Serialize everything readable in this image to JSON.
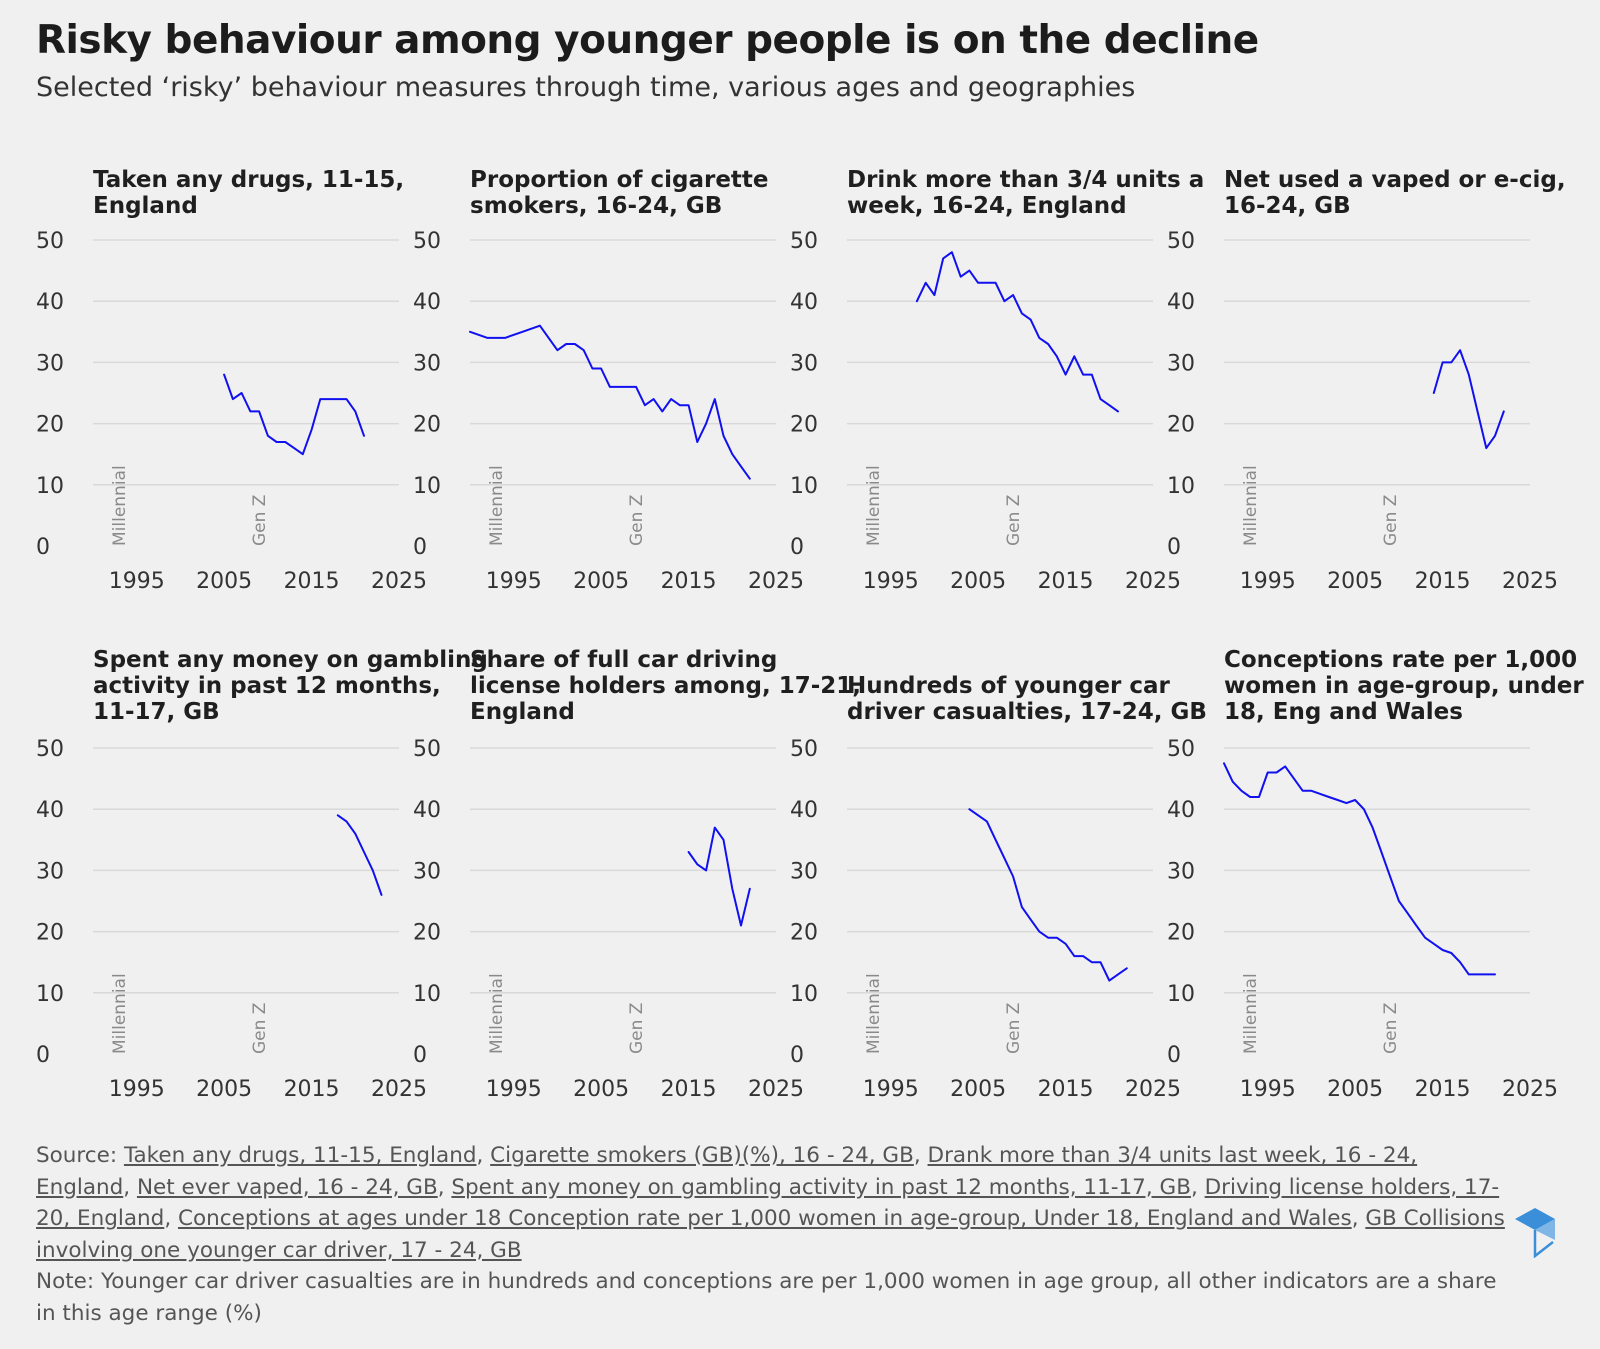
{
  "title": "Risky behaviour among younger people is on the decline",
  "subtitle": "Selected ‘risky’ behaviour measures through time, various ages and geographies",
  "chart_data": [
    {
      "type": "line",
      "title_lines": [
        "Taken any drugs, 11-15,",
        "England"
      ],
      "xlim": [
        1990,
        2025
      ],
      "ylim": [
        0,
        50
      ],
      "x_ticks": [
        "1995",
        "2005",
        "2015",
        "2025"
      ],
      "y_ticks": [
        "0",
        "10",
        "20",
        "30",
        "40",
        "50"
      ],
      "generation_labels": [
        "Millennial",
        "Gen Z"
      ],
      "series": [
        {
          "x": [
            2005,
            2006,
            2007,
            2008,
            2009,
            2010,
            2011,
            2012,
            2013,
            2014,
            2015,
            2016,
            2017,
            2018,
            2019,
            2020,
            2021
          ],
          "y": [
            28,
            24,
            25,
            22,
            22,
            18,
            17,
            17,
            16,
            15,
            19,
            24,
            24,
            24,
            24,
            22,
            18
          ]
        }
      ]
    },
    {
      "type": "line",
      "title_lines": [
        "Proportion of cigarette",
        "smokers, 16-24, GB"
      ],
      "xlim": [
        1990,
        2025
      ],
      "ylim": [
        0,
        50
      ],
      "x_ticks": [
        "1995",
        "2005",
        "2015",
        "2025"
      ],
      "y_ticks": [
        "0",
        "10",
        "20",
        "30",
        "40",
        "50"
      ],
      "generation_labels": [
        "Millennial",
        "Gen Z"
      ],
      "series": [
        {
          "x": [
            1990,
            1992,
            1994,
            1996,
            1998,
            2000,
            2001,
            2002,
            2003,
            2004,
            2005,
            2006,
            2007,
            2008,
            2009,
            2010,
            2011,
            2012,
            2013,
            2014,
            2015,
            2016,
            2017,
            2018,
            2019,
            2020,
            2021,
            2022
          ],
          "y": [
            35,
            34,
            34,
            35,
            36,
            32,
            33,
            33,
            32,
            29,
            29,
            26,
            26,
            26,
            26,
            23,
            24,
            22,
            24,
            23,
            23,
            17,
            20,
            24,
            18,
            15,
            13,
            11
          ]
        }
      ]
    },
    {
      "type": "line",
      "title_lines": [
        "Drink more than 3/4 units a",
        "week, 16-24, England"
      ],
      "xlim": [
        1990,
        2025
      ],
      "ylim": [
        0,
        50
      ],
      "x_ticks": [
        "1995",
        "2005",
        "2015",
        "2025"
      ],
      "y_ticks": [
        "0",
        "10",
        "20",
        "30",
        "40",
        "50"
      ],
      "generation_labels": [
        "Millennial",
        "Gen Z"
      ],
      "series": [
        {
          "x": [
            1998,
            1999,
            2000,
            2001,
            2002,
            2003,
            2004,
            2005,
            2006,
            2007,
            2008,
            2009,
            2010,
            2011,
            2012,
            2013,
            2014,
            2015,
            2016,
            2017,
            2018,
            2019,
            2020,
            2021
          ],
          "y": [
            40,
            43,
            41,
            47,
            48,
            44,
            45,
            43,
            43,
            43,
            40,
            41,
            38,
            37,
            34,
            33,
            31,
            28,
            31,
            28,
            28,
            24,
            23,
            22
          ]
        }
      ]
    },
    {
      "type": "line",
      "title_lines": [
        "Net used a vaped or e-cig,",
        "16-24, GB"
      ],
      "xlim": [
        1990,
        2025
      ],
      "ylim": [
        0,
        50
      ],
      "x_ticks": [
        "1995",
        "2005",
        "2015",
        "2025"
      ],
      "y_ticks": [
        "0",
        "10",
        "20",
        "30",
        "40",
        "50"
      ],
      "generation_labels": [
        "Millennial",
        "Gen Z"
      ],
      "series": [
        {
          "x": [
            2014,
            2015,
            2016,
            2017,
            2018,
            2019,
            2020,
            2021,
            2022
          ],
          "y": [
            25,
            30,
            30,
            32,
            28,
            22,
            16,
            18,
            22
          ]
        }
      ]
    },
    {
      "type": "line",
      "title_lines": [
        "Spent any money on gambling",
        "activity in past 12 months,",
        "11-17, GB"
      ],
      "xlim": [
        1990,
        2025
      ],
      "ylim": [
        0,
        50
      ],
      "x_ticks": [
        "1995",
        "2005",
        "2015",
        "2025"
      ],
      "y_ticks": [
        "0",
        "10",
        "20",
        "30",
        "40",
        "50"
      ],
      "generation_labels": [
        "Millennial",
        "Gen Z"
      ],
      "series": [
        {
          "x": [
            2018,
            2019,
            2020,
            2021,
            2022,
            2023
          ],
          "y": [
            39,
            38,
            36,
            33,
            30,
            26
          ]
        }
      ]
    },
    {
      "type": "line",
      "title_lines": [
        "Share of full car driving",
        "license holders among, 17-21,",
        "England"
      ],
      "xlim": [
        1990,
        2025
      ],
      "ylim": [
        0,
        50
      ],
      "x_ticks": [
        "1995",
        "2005",
        "2015",
        "2025"
      ],
      "y_ticks": [
        "0",
        "10",
        "20",
        "30",
        "40",
        "50"
      ],
      "generation_labels": [
        "Millennial",
        "Gen Z"
      ],
      "series": [
        {
          "x": [
            2015,
            2016,
            2017,
            2018,
            2019,
            2020,
            2021,
            2022
          ],
          "y": [
            33,
            31,
            30,
            37,
            35,
            27,
            21,
            27
          ]
        }
      ]
    },
    {
      "type": "line",
      "title_lines": [
        "Hundreds of younger car",
        "driver casualties, 17-24, GB"
      ],
      "xlim": [
        1990,
        2025
      ],
      "ylim": [
        0,
        50
      ],
      "x_ticks": [
        "1995",
        "2005",
        "2015",
        "2025"
      ],
      "y_ticks": [
        "0",
        "10",
        "20",
        "30",
        "40",
        "50"
      ],
      "generation_labels": [
        "Millennial",
        "Gen Z"
      ],
      "series": [
        {
          "x": [
            2004,
            2005,
            2006,
            2007,
            2008,
            2009,
            2010,
            2011,
            2012,
            2013,
            2014,
            2015,
            2016,
            2017,
            2018,
            2019,
            2020,
            2021,
            2022
          ],
          "y": [
            40,
            39,
            38,
            35,
            32,
            29,
            24,
            22,
            20,
            19,
            19,
            18,
            16,
            16,
            15,
            15,
            12,
            13,
            14
          ]
        }
      ]
    },
    {
      "type": "line",
      "title_lines": [
        "Conceptions rate per 1,000",
        "women in age-group, under",
        "18, Eng and Wales"
      ],
      "xlim": [
        1990,
        2025
      ],
      "ylim": [
        0,
        50
      ],
      "x_ticks": [
        "1995",
        "2005",
        "2015",
        "2025"
      ],
      "y_ticks": [
        "0",
        "10",
        "20",
        "30",
        "40",
        "50"
      ],
      "generation_labels": [
        "Millennial",
        "Gen Z"
      ],
      "series": [
        {
          "x": [
            1990,
            1991,
            1992,
            1993,
            1994,
            1995,
            1996,
            1997,
            1998,
            1999,
            2000,
            2001,
            2002,
            2003,
            2004,
            2005,
            2006,
            2007,
            2008,
            2009,
            2010,
            2011,
            2012,
            2013,
            2014,
            2015,
            2016,
            2017,
            2018,
            2019,
            2020,
            2021
          ],
          "y": [
            47.5,
            44.5,
            43,
            42,
            42,
            46,
            46,
            47,
            45,
            43,
            43,
            42.5,
            42,
            41.5,
            41,
            41.5,
            40,
            37,
            33,
            29,
            25,
            23,
            21,
            19,
            18,
            17,
            16.5,
            15,
            13,
            13,
            13,
            13
          ]
        }
      ]
    }
  ],
  "footer": {
    "source_label": "Source:",
    "links": [
      "Taken any drugs, 11-15, England",
      "Cigarette smokers (GB)(%), 16 - 24, GB",
      "Drank more than 3/4 units last week, 16 - 24, England",
      "Net ever vaped, 16 - 24, GB",
      "Spent any money on gambling activity in past 12 months, 11-17, GB",
      "Driving license holders, 17-20, England",
      "Conceptions at ages under 18 Conception rate per 1,000 women in age-group, Under 18, England and Wales",
      "GB Collisions involving one younger car driver, 17 - 24, GB"
    ],
    "note": "Note: Younger car driver casualties are in hundreds and conceptions are per 1,000 women in age group, all other indicators are a share in this age range (%)"
  },
  "colors": {
    "line": "#1010f0",
    "background": "#f0f0f0",
    "grid": "#d9d9d9",
    "logo": "#3a8fd8"
  }
}
